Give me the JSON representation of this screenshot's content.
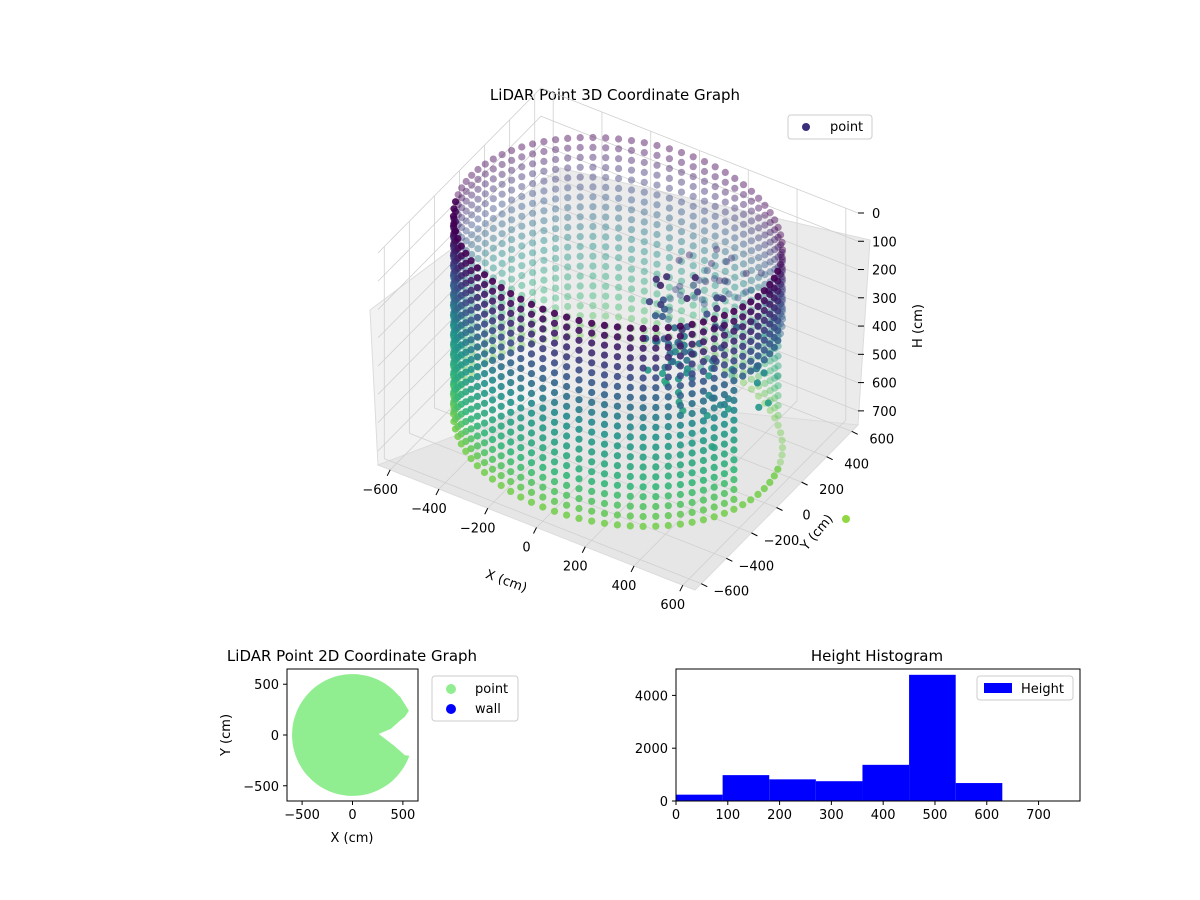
{
  "chart_data": [
    {
      "type": "scatter",
      "subtype": "3d",
      "title": "LiDAR Point 3D Coordinate Graph",
      "xlabel": "X (cm)",
      "ylabel": "Y (cm)",
      "zlabel": "H (cm)",
      "xticks": [
        -600,
        -400,
        -200,
        0,
        200,
        400,
        600
      ],
      "yticks": [
        -600,
        -400,
        -200,
        0,
        200,
        400,
        600
      ],
      "zticks": [
        0,
        100,
        200,
        300,
        400,
        500,
        600,
        700
      ],
      "xlim": [
        -650,
        650
      ],
      "ylim": [
        -650,
        650
      ],
      "zlim": [
        0,
        750
      ],
      "z_inverted": true,
      "colormap": [
        "#440154",
        "#3b528b",
        "#21918c",
        "#35b779",
        "#90d743"
      ],
      "legend": {
        "entries": [
          "point"
        ],
        "marker_color": "#3b2f7a",
        "placement": "top-right"
      },
      "series": [
        {
          "name": "point",
          "description_points": "cylindrical wall, radius ~600 cm, heights 0-700 cm, opening near +X"
        }
      ],
      "outlier": {
        "x": 620,
        "y": 0,
        "h": 760,
        "color": "#90d743"
      },
      "grid": true
    },
    {
      "type": "scatter",
      "title": "LiDAR Point 2D Coordinate Graph",
      "xlabel": "X (cm)",
      "ylabel": "Y (cm)",
      "xticks": [
        -500,
        0,
        500
      ],
      "yticks": [
        -500,
        0,
        500
      ],
      "xlim": [
        -650,
        650
      ],
      "ylim": [
        -650,
        650
      ],
      "legend": {
        "entries": [
          {
            "label": "point",
            "color": "#90ee90"
          },
          {
            "label": "wall",
            "color": "#0000ff"
          }
        ],
        "placement": "outside-right"
      },
      "series": [
        {
          "name": "point",
          "color": "#90ee90",
          "shape": "disc radius 600 with notch on +X side"
        },
        {
          "name": "wall",
          "color": "#0000ff"
        }
      ]
    },
    {
      "type": "bar",
      "subtype": "histogram",
      "title": "Height Histogram",
      "xticks": [
        0,
        100,
        200,
        300,
        400,
        500,
        600,
        700
      ],
      "yticks": [
        0,
        2000,
        4000
      ],
      "xlim": [
        0,
        780
      ],
      "ylim": [
        0,
        5000
      ],
      "bin_edges": [
        0,
        90,
        180,
        270,
        360,
        450,
        540,
        630,
        720
      ],
      "values": [
        240,
        980,
        820,
        750,
        1370,
        4780,
        680,
        0
      ],
      "color": "#0000ff",
      "legend": {
        "entries": [
          "Height"
        ],
        "placement": "top-right"
      }
    }
  ]
}
